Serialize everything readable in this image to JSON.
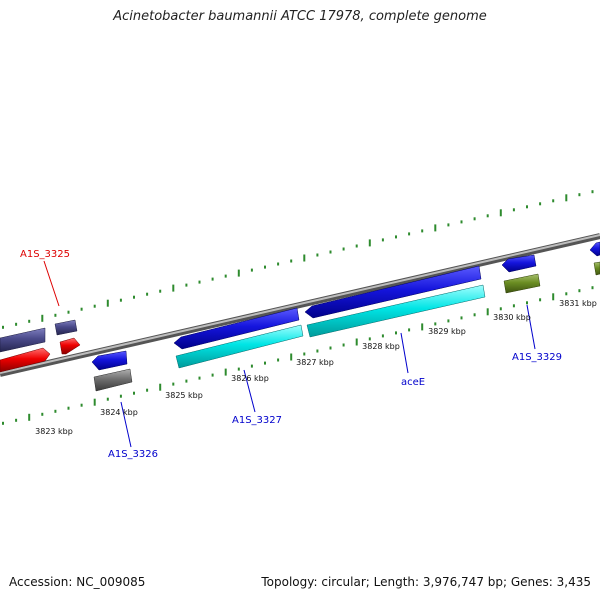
{
  "title": "Acinetobacter baumannii ATCC 17978, complete genome",
  "footer": {
    "accession": "Accession: NC_009085",
    "summary": "Topology: circular; Length: 3,976,747 bp; Genes: 3,435"
  },
  "colors": {
    "backbone": "#8a8a8a",
    "tick": "#2e8b2e",
    "gene_label_blue": "#0000cc",
    "gene_label_red": "#dd0000",
    "cds_blue": "#1414dd",
    "cds_slate": "#4a4a8a",
    "cds_red": "#ee0000",
    "cds_grey": "#707070",
    "cds_cyan": "#00e5e5",
    "cds_olive": "#6b8e23"
  },
  "axis_labels": [
    "3823 kbp",
    "3824 kbp",
    "3825 kbp",
    "3826 kbp",
    "3827 kbp",
    "3828 kbp",
    "3829 kbp",
    "3830 kbp",
    "3831 kbp"
  ],
  "gene_labels": [
    {
      "text": "A1S_3325",
      "color": "red"
    },
    {
      "text": "A1S_3326",
      "color": "blue"
    },
    {
      "text": "A1S_3327",
      "color": "blue"
    },
    {
      "text": "aceE",
      "color": "blue"
    },
    {
      "text": "A1S_3329",
      "color": "blue"
    }
  ]
}
